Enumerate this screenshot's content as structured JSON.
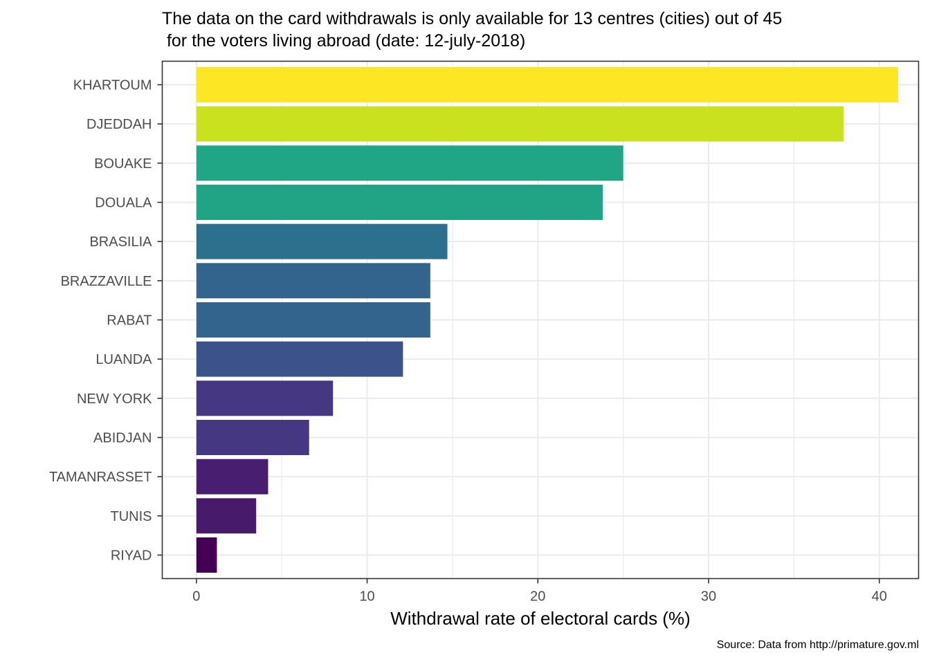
{
  "chart_data": {
    "type": "bar",
    "orientation": "horizontal",
    "title": "The data on the card withdrawals is only available for 13 centres (cities) out of 45\n for the voters living abroad (date: 12-july-2018)",
    "caption": "Source: Data from http://primature.gov.ml",
    "xlabel": "Withdrawal rate of electoral cards (%)",
    "ylabel": "",
    "xlim": [
      -2,
      42.3
    ],
    "xticks": [
      0,
      10,
      20,
      30,
      40
    ],
    "grid": true,
    "legend": "none",
    "categories": [
      "KHARTOUM",
      "DJEDDAH",
      "BOUAKE",
      "DOUALA",
      "BRASILIA",
      "BRAZZAVILLE",
      "RABAT",
      "LUANDA",
      "NEW YORK",
      "ABIDJAN",
      "TAMANRASSET",
      "TUNIS",
      "RIYAD"
    ],
    "values": [
      41.1,
      37.9,
      25.0,
      23.8,
      14.7,
      13.7,
      13.7,
      12.1,
      8.0,
      6.6,
      4.2,
      3.5,
      1.2
    ],
    "colors": [
      "#FDE725",
      "#CAE11F",
      "#21A685",
      "#21A386",
      "#2D708E",
      "#32648E",
      "#32648E",
      "#3B528B",
      "#453781",
      "#453781",
      "#481F70",
      "#481A6C",
      "#440154"
    ]
  }
}
